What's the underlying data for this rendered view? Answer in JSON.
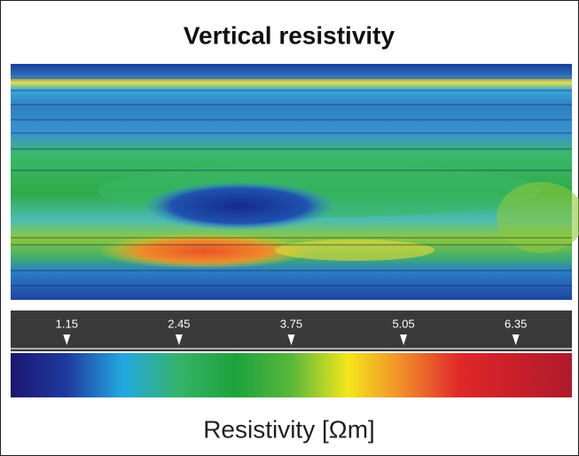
{
  "chart_data": {
    "type": "heatmap",
    "title": "Vertical resistivity",
    "colorbar": {
      "label": "Resistivity [Ωm]",
      "lim": [
        0.5,
        7.0
      ],
      "ticks": [
        1.15,
        2.45,
        3.75,
        5.05,
        6.35
      ],
      "colors": [
        "#1b1670",
        "#1f3a9e",
        "#22a8e0",
        "#36b36a",
        "#1ea23c",
        "#57b83a",
        "#f4e61c",
        "#f08a2a",
        "#e0282a",
        "#c81f2a",
        "#b01a2e"
      ]
    }
  }
}
